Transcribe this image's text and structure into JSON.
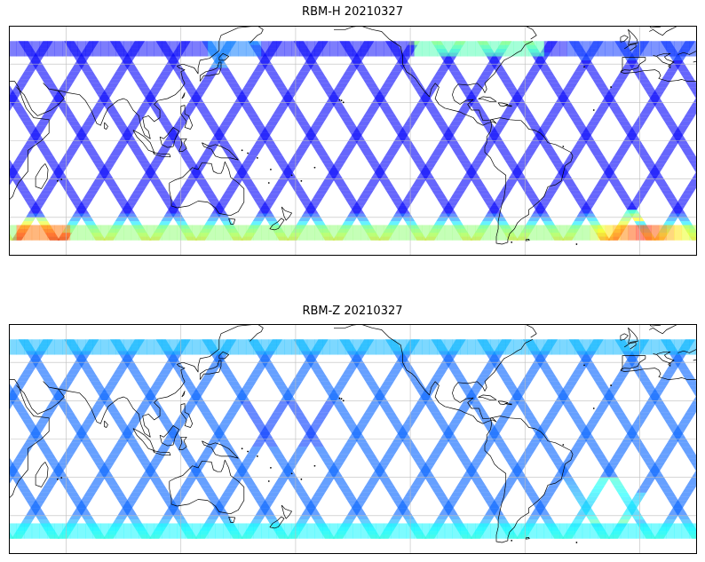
{
  "figure": {
    "panels": [
      {
        "id": "rbm-h",
        "title": "RBM-H 20210327",
        "channel": "RBM-H",
        "date": "20210327"
      },
      {
        "id": "rbm-z",
        "title": "RBM-Z 20210327",
        "channel": "RBM-Z",
        "date": "20210327"
      }
    ]
  },
  "map": {
    "projection": "equirectangular",
    "lon_range": [
      30,
      390
    ],
    "lat_range": [
      -60,
      60
    ],
    "coverage_lat_range": [
      -52,
      52
    ],
    "graticule_lon": [
      60,
      120,
      180,
      240,
      300,
      360
    ],
    "graticule_lat": [
      -40,
      -20,
      0,
      20,
      40
    ],
    "colormap": "jet",
    "track_opacity": 0.6,
    "colors": {
      "low": "#3f3ff0",
      "mid": "#29d4f0",
      "high": "#ff2020"
    },
    "coastline_color": "#000000",
    "grid_color": "#bdbdbd"
  }
}
